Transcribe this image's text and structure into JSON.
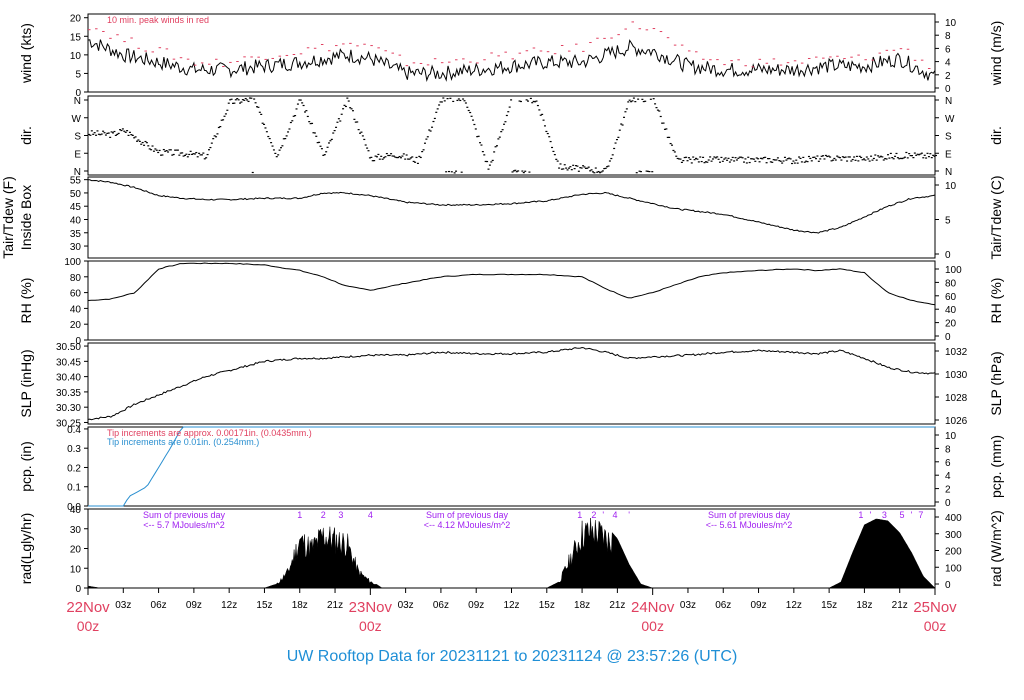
{
  "title": "UW Rooftop Data for 20231121  to  20231124 @ 23:57:26  (UTC)",
  "colors": {
    "red": "#e04060",
    "blue": "#2a8fd0",
    "purple": "#a020f0",
    "title": "#1f8fd6"
  },
  "chart_data": [
    {
      "id": "wind",
      "type": "line",
      "ylabel_left": "wind (kts)",
      "ylabel_right": "wind (m/s)",
      "ylim": [
        0,
        21
      ],
      "yticks_left": [
        0,
        5,
        10,
        15,
        20
      ],
      "yticks_right": [
        "0",
        "2",
        "4",
        "6",
        "8",
        "10"
      ],
      "annotation": "10 min. peak winds in red",
      "series": [
        {
          "color": "#000000",
          "x_hours": [
            0,
            3,
            6,
            9,
            12,
            15,
            18,
            20,
            22,
            24,
            27,
            30,
            33,
            36,
            39,
            42,
            44,
            46,
            48,
            51,
            54,
            57,
            60,
            63,
            66,
            69,
            72
          ],
          "values": [
            14,
            10,
            8,
            6,
            6,
            7,
            8,
            9,
            10,
            9,
            5,
            5,
            6,
            7,
            8,
            8,
            10,
            12,
            11,
            7,
            6,
            6,
            6,
            7,
            7,
            9,
            4
          ]
        },
        {
          "color": "#e04060",
          "x_hours": [
            0,
            3,
            6,
            9,
            12,
            15,
            18,
            20,
            22,
            24,
            27,
            30,
            33,
            36,
            39,
            42,
            44,
            46,
            48,
            51,
            54,
            57,
            60,
            63,
            66,
            69,
            72
          ],
          "values": [
            18,
            14,
            11,
            8,
            8,
            10,
            11,
            12,
            13,
            12,
            8,
            8,
            9,
            10,
            11,
            12,
            15,
            18,
            17,
            10,
            8,
            8,
            8,
            9,
            9,
            12,
            6
          ]
        }
      ]
    },
    {
      "id": "dir",
      "type": "scatter",
      "ylabel_left": "dir.",
      "ylabel_right": "dir.",
      "yticks": [
        "N",
        "W",
        "S",
        "E",
        "N"
      ],
      "series": [
        {
          "color": "#000000",
          "x_hours": [
            0,
            2,
            3,
            4,
            5,
            6,
            8,
            10,
            12,
            14,
            16,
            18,
            20,
            22,
            24,
            26,
            28,
            30,
            32,
            34,
            36,
            38,
            40,
            42,
            44,
            46,
            48,
            50,
            52,
            54,
            56,
            58,
            60,
            62,
            64,
            66,
            68,
            70,
            72
          ],
          "values": [
            190,
            185,
            205,
            170,
            130,
            100,
            95,
            80,
            340,
            355,
            85,
            355,
            80,
            350,
            70,
            90,
            60,
            355,
            355,
            20,
            360,
            350,
            30,
            20,
            10,
            355,
            360,
            60,
            65,
            62,
            62,
            64,
            60,
            70,
            72,
            68,
            80,
            85,
            80
          ]
        }
      ]
    },
    {
      "id": "temp",
      "type": "line",
      "ylabel_left": "Tair/Tdew (F)",
      "ylabel_left_2": "Inside Box",
      "ylabel_right": "Tair/Tdew (C)",
      "ylim": [
        25.5,
        56
      ],
      "yticks_left": [
        30,
        35,
        40,
        45,
        50,
        55
      ],
      "yticks_right": [
        "0",
        "5",
        "10"
      ],
      "series": [
        {
          "color": "#000000",
          "x_hours": [
            0,
            2,
            4,
            6,
            8,
            10,
            12,
            15,
            18,
            20,
            22,
            24,
            27,
            30,
            33,
            36,
            39,
            42,
            44,
            46,
            48,
            50,
            52,
            54,
            56,
            58,
            60,
            62,
            64,
            66,
            68,
            70,
            72
          ],
          "values": [
            55,
            54,
            52,
            49,
            48,
            47.5,
            47.5,
            48,
            48,
            50,
            50,
            49,
            46.5,
            45.5,
            45.5,
            46,
            47,
            49.5,
            50,
            48,
            46,
            44,
            43,
            42,
            40,
            38,
            36,
            35,
            37,
            41,
            45,
            48,
            49
          ]
        }
      ]
    },
    {
      "id": "rh",
      "type": "line",
      "ylabel_left": "RH (%)",
      "ylabel_right": "RH (%)",
      "ylim": [
        0,
        100
      ],
      "yticks_left": [
        0,
        20,
        40,
        60,
        80,
        100
      ],
      "yticks_right": [
        "0",
        "20",
        "40",
        "60",
        "80",
        "100"
      ],
      "series": [
        {
          "color": "#000000",
          "x_hours": [
            0,
            2,
            4,
            6,
            8,
            10,
            12,
            15,
            18,
            20,
            22,
            24,
            27,
            30,
            33,
            36,
            39,
            42,
            44,
            46,
            48,
            50,
            52,
            54,
            57,
            60,
            62,
            64,
            66,
            68,
            70,
            72
          ],
          "values": [
            50,
            52,
            60,
            90,
            97,
            97,
            97,
            95,
            88,
            80,
            68,
            63,
            72,
            80,
            83,
            83,
            83,
            80,
            65,
            53,
            60,
            70,
            80,
            85,
            88,
            90,
            88,
            90,
            85,
            60,
            50,
            45
          ]
        }
      ]
    },
    {
      "id": "slp",
      "type": "line",
      "ylabel_left": "SLP (inHg)",
      "ylabel_right": "SLP (hPa)",
      "ylim": [
        30.245,
        30.51
      ],
      "yticks_left": [
        "30.25",
        "30.30",
        "30.35",
        "30.40",
        "30.45",
        "30.50"
      ],
      "yticks_right": [
        "1026",
        "1028",
        "1030",
        "1032"
      ],
      "series": [
        {
          "color": "#000000",
          "x_hours": [
            0,
            2,
            4,
            6,
            8,
            10,
            12,
            15,
            18,
            20,
            22,
            24,
            27,
            30,
            33,
            36,
            39,
            42,
            44,
            46,
            48,
            51,
            54,
            57,
            60,
            62,
            64,
            66,
            68,
            70,
            72
          ],
          "values": [
            30.26,
            30.27,
            30.31,
            30.34,
            30.37,
            30.4,
            30.42,
            30.45,
            30.46,
            30.46,
            30.465,
            30.47,
            30.47,
            30.48,
            30.475,
            30.475,
            30.48,
            30.495,
            30.48,
            30.46,
            30.465,
            30.47,
            30.48,
            30.485,
            30.48,
            30.475,
            30.485,
            30.46,
            30.43,
            30.415,
            30.41
          ]
        }
      ]
    },
    {
      "id": "pcp",
      "type": "line",
      "ylabel_left": "pcp. (in)",
      "ylabel_right": "pcp. (mm)",
      "ylim": [
        0,
        0.41
      ],
      "yticks_left": [
        "0.0",
        "0.1",
        "0.2",
        "0.3",
        "0.4"
      ],
      "yticks_right": [
        "0",
        "2",
        "4",
        "6",
        "8",
        "10"
      ],
      "annotations": [
        "Tip increments are approx. 0.00171in. (0.0435mm.)",
        "Tip increments are 0.01in. (0.254mm.)"
      ],
      "series": [
        {
          "color": "#2a8fd0",
          "x_hours": [
            0,
            3,
            3.5,
            5,
            6,
            7,
            8,
            72
          ],
          "values": [
            0,
            0,
            0.05,
            0.1,
            0.2,
            0.3,
            0.41,
            0.41
          ]
        }
      ]
    },
    {
      "id": "rad",
      "type": "area",
      "ylabel_left": "rad(Lgly/hr)",
      "ylabel_right": "rad (W/m^2)",
      "ylim": [
        0,
        40
      ],
      "yticks_left": [
        0,
        10,
        20,
        30,
        40
      ],
      "yticks_right": [
        "0",
        "100",
        "200",
        "300",
        "400"
      ],
      "daily_sums": [
        {
          "label": "Sum of previous day",
          "value": "<-- 5.7 MJoules/m^2"
        },
        {
          "label": "Sum of previous day",
          "value": "<-- 4.12 MJoules/m^2"
        },
        {
          "label": "Sum of previous day",
          "value": "<-- 5.61 MJoules/m^2"
        }
      ],
      "hour_markers": [
        {
          "labels": [
            "1",
            "2",
            "3",
            "4"
          ],
          "x_hours": [
            18,
            20,
            21.5,
            24
          ]
        },
        {
          "labels": [
            "1",
            "2",
            "'",
            "4",
            "'"
          ],
          "x_hours": [
            41.8,
            43,
            43.8,
            44.8,
            46
          ]
        },
        {
          "labels": [
            "1",
            "'",
            "3",
            "5",
            "'",
            "7"
          ],
          "x_hours": [
            65.7,
            66.5,
            67.7,
            69.2,
            70,
            70.8
          ]
        }
      ],
      "series": [
        {
          "color": "#000000",
          "x_hours": [
            0,
            1,
            15,
            16,
            17,
            18,
            19,
            20,
            21,
            22,
            23,
            24,
            25,
            39,
            40,
            41,
            42,
            43,
            44,
            45,
            46,
            47,
            48,
            63,
            64,
            65,
            66,
            67,
            68,
            69,
            70,
            71,
            72
          ],
          "values": [
            1,
            0,
            0,
            2,
            10,
            30,
            25,
            33,
            30,
            28,
            10,
            4,
            0,
            0,
            3,
            18,
            34,
            36,
            32,
            25,
            12,
            2,
            0,
            0,
            3,
            18,
            32,
            35,
            34,
            28,
            18,
            6,
            0
          ]
        }
      ]
    }
  ],
  "x_axis": {
    "hour_ticks": [
      "03z",
      "06z",
      "09z",
      "12z",
      "15z",
      "18z",
      "21z"
    ],
    "day_labels": [
      {
        "top": "22Nov",
        "bottom": "00z"
      },
      {
        "top": "23Nov",
        "bottom": "00z"
      },
      {
        "top": "24Nov",
        "bottom": "00z"
      },
      {
        "top": "25Nov",
        "bottom": "00z"
      }
    ]
  }
}
